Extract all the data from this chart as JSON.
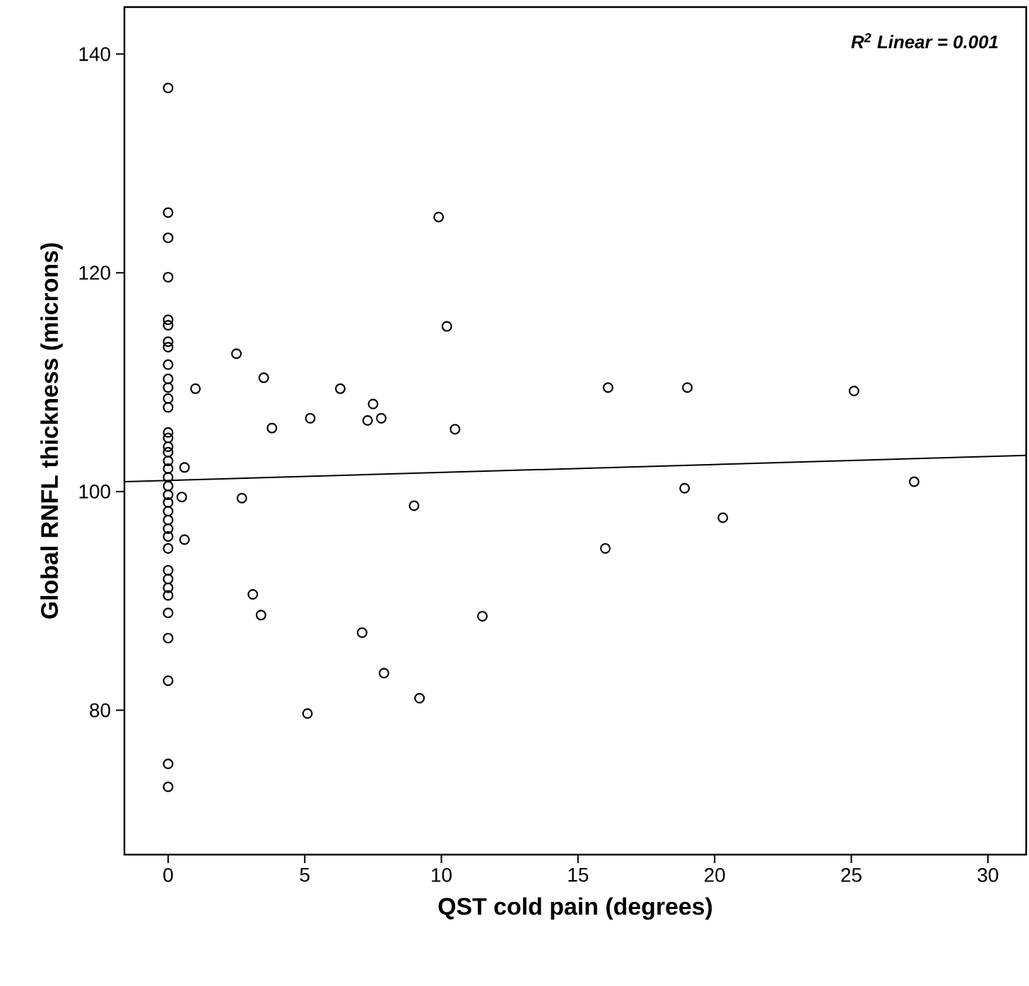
{
  "chart_data": {
    "type": "scatter",
    "xlabel": "QST cold pain (degrees)",
    "ylabel": "Global RNFL thickness (microns)",
    "annotations": [
      "R$^{2}$ Linear = 0.001"
    ],
    "xlim": [
      -1.6,
      31.4
    ],
    "ylim": [
      66.8,
      144.3
    ],
    "xticks": [
      0,
      5,
      10,
      15,
      20,
      25,
      30
    ],
    "yticks": [
      80,
      100,
      120,
      140
    ],
    "marker": "circle",
    "series": [
      {
        "color": "#000000",
        "x": [
          0,
          0,
          0,
          0,
          0,
          0,
          0,
          0,
          0,
          0,
          0,
          0,
          0,
          0,
          0,
          0,
          0,
          0,
          0,
          0,
          0,
          0,
          0,
          0,
          0,
          0,
          0,
          0,
          0,
          0,
          0,
          0,
          0,
          0,
          0,
          0,
          0,
          0.6,
          0.5,
          0.6,
          1.0,
          2.5,
          3.5,
          3.8,
          5.2,
          6.3,
          7.5,
          7.3,
          7.8,
          10.2,
          10.5,
          16.1,
          2.7,
          9.0,
          16.0,
          3.1,
          3.4,
          7.1,
          11.5,
          7.9,
          9.2,
          5.1,
          19.0,
          25.1,
          18.9,
          20.3,
          27.3,
          9.9
        ],
        "values": [
          136.9,
          125.5,
          123.2,
          119.6,
          115.7,
          115.2,
          113.7,
          113.2,
          111.6,
          110.3,
          109.5,
          108.5,
          107.7,
          105.4,
          104.9,
          104.1,
          103.6,
          102.8,
          102.1,
          101.3,
          100.5,
          99.7,
          99.0,
          98.2,
          97.4,
          96.6,
          95.9,
          94.8,
          92.8,
          92.0,
          91.2,
          90.5,
          88.9,
          86.6,
          82.7,
          75.1,
          73.0,
          102.2,
          99.5,
          95.6,
          109.4,
          112.6,
          110.4,
          105.8,
          106.7,
          109.4,
          108.0,
          106.5,
          106.7,
          115.1,
          105.7,
          109.5,
          99.4,
          98.7,
          94.8,
          90.6,
          88.7,
          87.1,
          88.6,
          83.4,
          81.1,
          79.7,
          109.5,
          109.2,
          100.3,
          97.6,
          100.9,
          125.1
        ]
      },
      {
        "type": "line",
        "color": "#000000",
        "marker": "none",
        "line_style": "solid",
        "x": [
          -1.6,
          31.4
        ],
        "values": [
          100.9,
          103.3
        ]
      }
    ]
  }
}
